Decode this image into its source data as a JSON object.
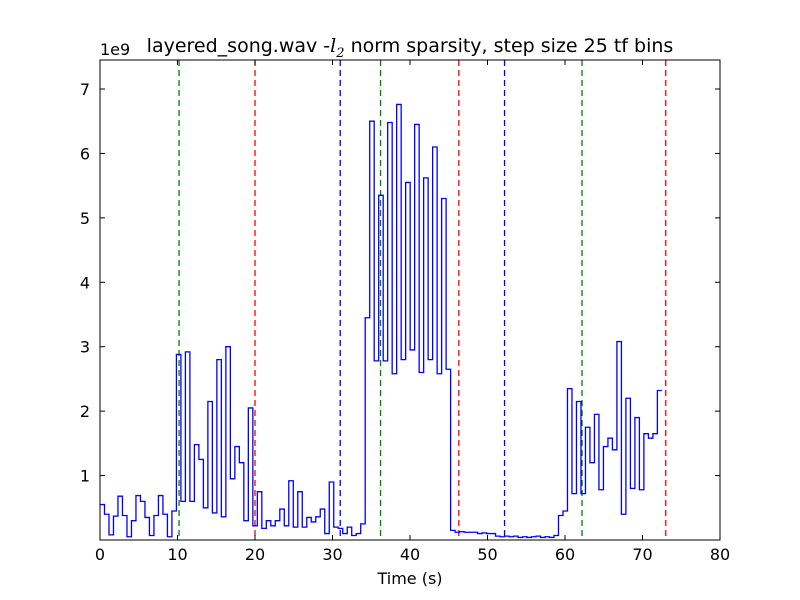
{
  "chart_data": {
    "type": "line",
    "title": "layered_song.wav -",
    "title_symbol": "l",
    "title_subscript": "2",
    "title_rest": " norm sparsity, step size 25 tf bins",
    "offset_label": "1e9",
    "xlabel": "Time (s)",
    "ylabel": "",
    "xlim": [
      0,
      80
    ],
    "ylim": [
      0,
      7.45
    ],
    "x_ticks": [
      "0",
      "10",
      "20",
      "30",
      "40",
      "50",
      "60",
      "70",
      "80"
    ],
    "y_ticks": [
      "1",
      "2",
      "3",
      "4",
      "5",
      "6",
      "7"
    ],
    "grid": false,
    "step_width": 0.58,
    "series": [
      {
        "color": "#0000ff",
        "style": "steps",
        "values": [
          0.55,
          0.4,
          0.08,
          0.37,
          0.68,
          0.38,
          0.05,
          0.3,
          0.69,
          0.6,
          0.35,
          0.07,
          0.38,
          0.69,
          0.4,
          0.05,
          0.45,
          2.88,
          0.6,
          2.92,
          0.6,
          1.48,
          1.25,
          0.5,
          2.15,
          0.42,
          2.8,
          0.36,
          3.0,
          0.95,
          1.45,
          1.2,
          0.3,
          2.05,
          0.22,
          0.75,
          0.18,
          0.3,
          0.22,
          0.3,
          0.48,
          0.22,
          0.92,
          0.2,
          0.75,
          0.2,
          0.35,
          0.28,
          0.36,
          0.48,
          0.1,
          0.9,
          0.2,
          0.18,
          0.1,
          0.2,
          0.07,
          0.1,
          0.25,
          3.45,
          6.5,
          2.78,
          5.35,
          2.78,
          6.48,
          2.58,
          6.76,
          2.8,
          5.55,
          2.95,
          6.45,
          2.6,
          5.62,
          2.8,
          6.1,
          2.58,
          5.3,
          2.65,
          0.15,
          0.12,
          0.13,
          0.12,
          0.12,
          0.12,
          0.1,
          0.11,
          0.1,
          0.1,
          0.06,
          0.05,
          0.06,
          0.05,
          0.06,
          0.04,
          0.05,
          0.04,
          0.05,
          0.06,
          0.04,
          0.05,
          0.04,
          0.07,
          0.38,
          0.45,
          2.35,
          0.72,
          2.15,
          0.72,
          1.75,
          1.2,
          1.95,
          0.78,
          1.45,
          1.58,
          1.4,
          3.08,
          0.4,
          2.2,
          0.8,
          1.9,
          0.78,
          1.65,
          1.58,
          1.65,
          2.32
        ]
      }
    ],
    "vlines": [
      {
        "x": 10.2,
        "color": "#008000"
      },
      {
        "x": 20.0,
        "color": "#ff0000"
      },
      {
        "x": 31.0,
        "color": "#0000ff"
      },
      {
        "x": 36.2,
        "color": "#008000"
      },
      {
        "x": 46.3,
        "color": "#ff0000"
      },
      {
        "x": 52.2,
        "color": "#0000ff"
      },
      {
        "x": 62.2,
        "color": "#008000"
      },
      {
        "x": 73.0,
        "color": "#ff0000"
      }
    ]
  }
}
